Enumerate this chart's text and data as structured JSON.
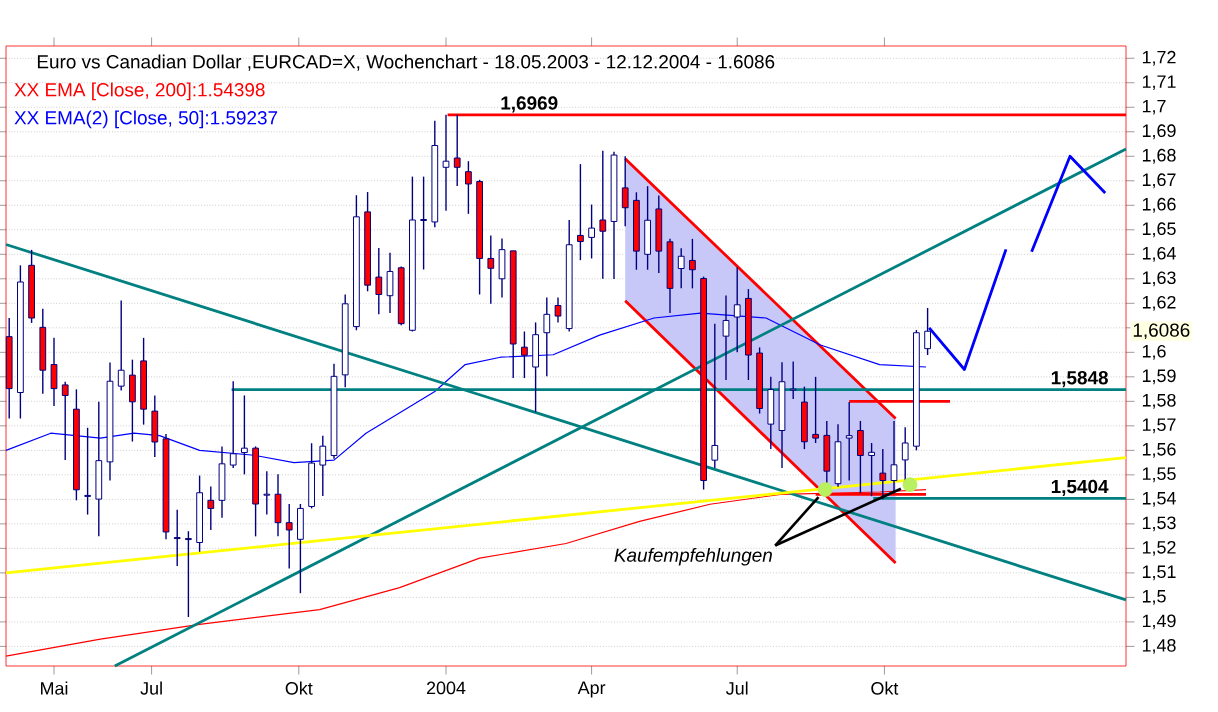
{
  "chart_data": {
    "type": "candlestick",
    "title": "Euro vs Canadian Dollar ,EURCAD=X, Wochenchart - 18.05.2003 - 12.12.2004 - 1.6086",
    "x": [
      "2003-04-03",
      "2003-04-10",
      "2003-04-17",
      "2003-04-24",
      "2003-05-01",
      "2003-05-08",
      "2003-05-15",
      "2003-05-22",
      "2003-05-29",
      "2003-06-05",
      "2003-06-12",
      "2003-06-19",
      "2003-06-26",
      "2003-07-03",
      "2003-07-10",
      "2003-07-17",
      "2003-07-24",
      "2003-07-31",
      "2003-08-07",
      "2003-08-14",
      "2003-08-21",
      "2003-08-28",
      "2003-09-04",
      "2003-09-11",
      "2003-09-18",
      "2003-09-25",
      "2003-10-02",
      "2003-10-09",
      "2003-10-16",
      "2003-10-23",
      "2003-10-30",
      "2003-11-06",
      "2003-11-13",
      "2003-11-20",
      "2003-11-27",
      "2003-12-04",
      "2003-12-11",
      "2003-12-18",
      "2003-12-25",
      "2004-01-01",
      "2004-01-08",
      "2004-01-15",
      "2004-01-22",
      "2004-01-29",
      "2004-02-05",
      "2004-02-12",
      "2004-02-19",
      "2004-02-26",
      "2004-03-04",
      "2004-03-11",
      "2004-03-18",
      "2004-03-25",
      "2004-04-01",
      "2004-04-08",
      "2004-04-15",
      "2004-04-22",
      "2004-04-29",
      "2004-05-06",
      "2004-05-13",
      "2004-05-20",
      "2004-05-27",
      "2004-06-03",
      "2004-06-10",
      "2004-06-17",
      "2004-06-24",
      "2004-07-01",
      "2004-07-08",
      "2004-07-15",
      "2004-07-22",
      "2004-07-29",
      "2004-08-05",
      "2004-08-12",
      "2004-08-19",
      "2004-08-26",
      "2004-09-02",
      "2004-09-09",
      "2004-09-16",
      "2004-09-23",
      "2004-09-30",
      "2004-10-07",
      "2004-10-14",
      "2004-10-21",
      "2004-10-28"
    ],
    "ohlc": [
      [
        1.6064,
        1.614,
        1.573,
        1.5852
      ],
      [
        1.5836,
        1.6355,
        1.573,
        1.6287
      ],
      [
        1.6355,
        1.6418,
        1.612,
        1.614
      ],
      [
        1.6102,
        1.6178,
        1.5831,
        1.5927
      ],
      [
        1.595,
        1.6059,
        1.5781,
        1.5852
      ],
      [
        1.5867,
        1.588,
        1.5561,
        1.5824
      ],
      [
        1.5768,
        1.5849,
        1.5396,
        1.5439
      ],
      [
        1.5412,
        1.5692,
        1.5338,
        1.5416
      ],
      [
        1.5401,
        1.5798,
        1.5249,
        1.5558
      ],
      [
        1.5553,
        1.5958,
        1.5477,
        1.5882
      ],
      [
        1.5862,
        1.6211,
        1.5844,
        1.5927
      ],
      [
        1.5907,
        1.597,
        1.5636,
        1.5798
      ],
      [
        1.5965,
        1.6059,
        1.5705,
        1.5768
      ],
      [
        1.576,
        1.5824,
        1.5573,
        1.5634
      ],
      [
        1.5647,
        1.5667,
        1.5237,
        1.5267
      ],
      [
        1.5244,
        1.5358,
        1.5128,
        1.524
      ],
      [
        1.524,
        1.527,
        1.492,
        1.5236
      ],
      [
        1.5224,
        1.5497,
        1.5186,
        1.5427
      ],
      [
        1.5396,
        1.5452,
        1.5275,
        1.5363
      ],
      [
        1.5396,
        1.5616,
        1.5325,
        1.5545
      ],
      [
        1.554,
        1.5882,
        1.5528,
        1.5586
      ],
      [
        1.5591,
        1.5824,
        1.5502,
        1.5609
      ],
      [
        1.5609,
        1.5616,
        1.5249,
        1.5381
      ],
      [
        1.5417,
        1.5515,
        1.5338,
        1.5421
      ],
      [
        1.5421,
        1.5502,
        1.5249,
        1.5305
      ],
      [
        1.5305,
        1.5381,
        1.5118,
        1.5275
      ],
      [
        1.5237,
        1.5381,
        1.5017,
        1.5363
      ],
      [
        1.5371,
        1.5629,
        1.5363,
        1.5548
      ],
      [
        1.554,
        1.566,
        1.5414,
        1.5617
      ],
      [
        1.5579,
        1.5953,
        1.5566,
        1.5902
      ],
      [
        1.5908,
        1.6236,
        1.5857,
        1.6198
      ],
      [
        1.6105,
        1.6641,
        1.609,
        1.6553
      ],
      [
        1.6573,
        1.6654,
        1.6249,
        1.6274
      ],
      [
        1.6307,
        1.6426,
        1.6155,
        1.6236
      ],
      [
        1.6231,
        1.6406,
        1.616,
        1.633
      ],
      [
        1.6345,
        1.635,
        1.611,
        1.6117
      ],
      [
        1.609,
        1.6717,
        1.6085,
        1.654
      ],
      [
        1.6538,
        1.6717,
        1.6338,
        1.6542
      ],
      [
        1.6532,
        1.6945,
        1.651,
        1.6844
      ],
      [
        1.6755,
        1.6969,
        1.6578,
        1.678
      ],
      [
        1.6793,
        1.6969,
        1.6679,
        1.6755
      ],
      [
        1.6737,
        1.678,
        1.6565,
        1.6687
      ],
      [
        1.6697,
        1.6704,
        1.6236,
        1.6383
      ],
      [
        1.6383,
        1.6477,
        1.6198,
        1.6343
      ],
      [
        1.63,
        1.6464,
        1.6224,
        1.6419
      ],
      [
        1.6414,
        1.6414,
        1.5895,
        1.6034
      ],
      [
        1.6021,
        1.6085,
        1.5895,
        1.5988
      ],
      [
        1.594,
        1.6122,
        1.5756,
        1.6072
      ],
      [
        1.608,
        1.6224,
        1.5902,
        1.6155
      ],
      [
        1.6191,
        1.6224,
        1.6122,
        1.6148
      ],
      [
        1.6097,
        1.654,
        1.6085,
        1.6439
      ],
      [
        1.6477,
        1.6768,
        1.6376,
        1.6452
      ],
      [
        1.6469,
        1.6603,
        1.6383,
        1.6507
      ],
      [
        1.654,
        1.6823,
        1.63,
        1.6494
      ],
      [
        1.6534,
        1.6818,
        1.6299,
        1.6805
      ],
      [
        1.6671,
        1.68,
        1.6514,
        1.659
      ],
      [
        1.662,
        1.6653,
        1.6337,
        1.6413
      ],
      [
        1.64,
        1.6678,
        1.6337,
        1.6539
      ],
      [
        1.6585,
        1.664,
        1.6324,
        1.6413
      ],
      [
        1.6451,
        1.6463,
        1.616,
        1.6261
      ],
      [
        1.6342,
        1.6425,
        1.6261,
        1.6392
      ],
      [
        1.6375,
        1.6463,
        1.6261,
        1.6337
      ],
      [
        1.6301,
        1.6309,
        1.544,
        1.5477
      ],
      [
        1.556,
        1.6117,
        1.5528,
        1.562
      ],
      [
        1.6066,
        1.6232,
        1.5887,
        1.613
      ],
      [
        1.6144,
        1.6347,
        1.6,
        1.6194
      ],
      [
        1.622,
        1.6258,
        1.5887,
        1.5989
      ],
      [
        1.5997,
        1.602,
        1.575,
        1.5771
      ],
      [
        1.5707,
        1.59,
        1.5605,
        1.5848
      ],
      [
        1.5681,
        1.596,
        1.5528,
        1.588
      ],
      [
        1.5846,
        1.5963,
        1.581,
        1.585
      ],
      [
        1.5797,
        1.586,
        1.5605,
        1.5635
      ],
      [
        1.5665,
        1.59,
        1.563,
        1.565
      ],
      [
        1.5661,
        1.572,
        1.5451,
        1.5515
      ],
      [
        1.5464,
        1.5707,
        1.5451,
        1.5635
      ],
      [
        1.565,
        1.5797,
        1.5477,
        1.566
      ],
      [
        1.5681,
        1.572,
        1.5425,
        1.5579
      ],
      [
        1.5579,
        1.563,
        1.5413,
        1.5592
      ],
      [
        1.5507,
        1.5605,
        1.54,
        1.5477
      ],
      [
        1.5477,
        1.572,
        1.5425,
        1.5541
      ],
      [
        1.5561,
        1.5694,
        1.5464,
        1.563
      ],
      [
        1.5617,
        1.6091,
        1.56,
        1.608
      ],
      [
        1.6015,
        1.6181,
        1.5989,
        1.6086
      ]
    ],
    "color": "#000080",
    "colors": [
      "#ff0000",
      "#ffffff",
      "#ff0000",
      "#ff0000",
      "#ff0000",
      "#ff0000",
      "#ff0000",
      "#ffffff",
      "#ffffff",
      "#ffffff",
      "#ffffff",
      "#ff0000",
      "#ff0000",
      "#ff0000",
      "#ff0000",
      "#ff0000",
      "#ff0000",
      "#ffffff",
      "#ff0000",
      "#ffffff",
      "#ffffff",
      "#ffffff",
      "#ff0000",
      "#ffffff",
      "#ff0000",
      "#ff0000",
      "#ffffff",
      "#ffffff",
      "#ffffff",
      "#ffffff",
      "#ffffff",
      "#ffffff",
      "#ff0000",
      "#ff0000",
      "#ffffff",
      "#ff0000",
      "#ffffff",
      "#ffffff",
      "#ffffff",
      "#ffffff",
      "#ff0000",
      "#ff0000",
      "#ff0000",
      "#ff0000",
      "#ffffff",
      "#ff0000",
      "#ff0000",
      "#ffffff",
      "#ffffff",
      "#ff0000",
      "#ffffff",
      "#ff0000",
      "#ffffff",
      "#ff0000",
      "#ffffff",
      "#ff0000",
      "#ff0000",
      "#ffffff",
      "#ff0000",
      "#ff0000",
      "#ffffff",
      "#ff0000",
      "#ff0000",
      "#ffffff",
      "#ffffff",
      "#ffffff",
      "#ff0000",
      "#ff0000",
      "#ffffff",
      "#ffffff",
      "#ffffff",
      "#ff0000",
      "#ff0000",
      "#ff0000",
      "#ffffff",
      "#ffffff",
      "#ff0000",
      "#ffffff",
      "#ff0000",
      "#ffffff",
      "#ffffff",
      "#ffffff",
      "#ffffff"
    ],
    "series": [
      {
        "type": "area",
        "color": "#c8c8f8",
        "x": [
          "2004-04-22",
          "2004-10-08"
        ],
        "values": [
          null,
          null
        ],
        "lower": [
          1.6209,
          1.5141
        ],
        "upper": [
          1.6792,
          1.5732
        ]
      },
      {
        "type": "line",
        "color": "#ff0000",
        "x": [
          "2004-04-22",
          "2004-10-08"
        ],
        "values": [
          1.679,
          1.573
        ]
      },
      {
        "type": "line",
        "color": "#ff0000",
        "x": [
          "2004-04-22",
          "2004-10-08"
        ],
        "values": [
          1.621,
          1.514
        ]
      },
      {
        "name": "XX EMA [Close, 200]:1.54398",
        "type": "line",
        "color": "#ff0000",
        "x": [
          "2003-04-01",
          "2003-05-30",
          "2003-07-31",
          "2003-10-14",
          "2003-12-03",
          "2004-01-22",
          "2004-03-16",
          "2004-05-01",
          "2004-06-14",
          "2004-07-28",
          "2004-09-28",
          "2004-10-27"
        ],
        "values": [
          1.476,
          1.483,
          1.489,
          1.495,
          1.504,
          1.516,
          1.522,
          1.531,
          1.538,
          1.542,
          1.543,
          1.544
        ]
      },
      {
        "name": "XX EMA(2) [Close, 50]:1.59237",
        "type": "line",
        "color": "#0000ff",
        "x": [
          "2003-04-01",
          "2003-04-29",
          "2003-05-30",
          "2003-06-20",
          "2003-07-06",
          "2003-07-31",
          "2003-09-03",
          "2003-09-28",
          "2003-10-23",
          "2003-11-12",
          "2003-12-25",
          "2004-01-13",
          "2004-02-04",
          "2004-03-08",
          "2004-04-06",
          "2004-05-10",
          "2004-06-08",
          "2004-07-19",
          "2004-08-22",
          "2004-09-28",
          "2004-10-27"
        ],
        "values": [
          1.56,
          1.567,
          1.565,
          1.567,
          1.566,
          1.56,
          1.558,
          1.555,
          1.556,
          1.567,
          1.584,
          1.595,
          1.598,
          1.599,
          1.607,
          1.614,
          1.616,
          1.614,
          1.603,
          1.595,
          1.594
        ]
      },
      {
        "type": "line",
        "color": "#008080",
        "x": [
          "2003-04-01",
          "2005-03-01"
        ],
        "values": [
          1.644,
          1.499
        ]
      },
      {
        "type": "line",
        "color": "#008080",
        "x": [
          "2003-06-08",
          "2005-03-01"
        ],
        "values": [
          1.472,
          1.683
        ]
      },
      {
        "type": "line",
        "color": "#ffff00",
        "x": [
          "2003-04-01",
          "2005-03-01"
        ],
        "values": [
          1.51,
          1.557
        ]
      },
      {
        "type": "line",
        "color": "#ff0000",
        "x": [
          "2004-01-02",
          "2005-03-01"
        ],
        "values": [
          1.6969,
          1.6969
        ]
      },
      {
        "type": "line",
        "color": "#008080",
        "x": [
          "2003-08-20",
          "2005-03-01"
        ],
        "values": [
          1.5848,
          1.5848
        ]
      },
      {
        "type": "line",
        "color": "#008080",
        "x": [
          "2004-09-24",
          "2005-03-01"
        ],
        "values": [
          1.5404,
          1.5404
        ]
      },
      {
        "type": "line",
        "color": "#ff0000",
        "x": [
          "2004-09-09",
          "2004-11-11"
        ],
        "values": [
          1.58,
          1.58
        ]
      },
      {
        "type": "line",
        "color": "#ff0000",
        "x": [
          "2004-08-19",
          "2004-10-27"
        ],
        "values": [
          1.542,
          1.542
        ]
      },
      {
        "type": "line",
        "color": "#0000ff",
        "x": [
          "2004-10-29",
          "2004-11-20",
          "2004-12-16",
          "2004-12-25",
          "2005-01-01",
          "2005-01-25",
          "2005-02-16"
        ],
        "values": [
          1.61,
          1.593,
          1.642,
          null,
          1.641,
          1.68,
          1.665
        ]
      },
      {
        "type": "scatter",
        "color": "#b8f060",
        "marker": "circle",
        "x": [
          "2004-08-25",
          "2004-10-17"
        ],
        "values": [
          1.544,
          1.546
        ]
      }
    ],
    "annotations": [
      {
        "text": "1,6969",
        "x": "2004-02-22",
        "y": 1.6969
      },
      {
        "text": "1,5848",
        "x": "2005-01-31",
        "y": 1.5848
      },
      {
        "text": "1,5404",
        "x": "2005-01-31",
        "y": 1.5404
      },
      {
        "text": "1,6086",
        "y": 1.6086
      },
      {
        "text": "Kaufempfehlungen",
        "x": "2004-08-25",
        "y": 1.544
      }
    ],
    "legend": "top left",
    "grid": "y",
    "xlim": [
      "2003-04-01",
      "2005-03-01"
    ],
    "xticks": [
      {
        "value": "2003-05-01",
        "label": "Mai"
      },
      {
        "value": "2003-07-01",
        "label": "Jul"
      },
      {
        "value": "2003-10-01",
        "label": "Okt"
      },
      {
        "value": "2004-01-01",
        "label": "2004"
      },
      {
        "value": "2004-04-01",
        "label": "Apr"
      },
      {
        "value": "2004-07-01",
        "label": "Jul"
      },
      {
        "value": "2004-10-01",
        "label": "Okt"
      }
    ],
    "ylim": [
      1.472,
      1.725
    ],
    "yticks": [
      {
        "value": 1.48,
        "label": "1,48"
      },
      {
        "value": 1.49,
        "label": "1,49"
      },
      {
        "value": 1.5,
        "label": "1,5"
      },
      {
        "value": 1.51,
        "label": "1,51"
      },
      {
        "value": 1.52,
        "label": "1,52"
      },
      {
        "value": 1.53,
        "label": "1,53"
      },
      {
        "value": 1.54,
        "label": "1,54"
      },
      {
        "value": 1.55,
        "label": "1,55"
      },
      {
        "value": 1.56,
        "label": "1,56"
      },
      {
        "value": 1.57,
        "label": "1,57"
      },
      {
        "value": 1.58,
        "label": "1,58"
      },
      {
        "value": 1.59,
        "label": "1,59"
      },
      {
        "value": 1.6,
        "label": "1,6"
      },
      {
        "value": 1.61,
        "label": null
      },
      {
        "value": 1.62,
        "label": "1,62"
      },
      {
        "value": 1.63,
        "label": "1,63"
      },
      {
        "value": 1.64,
        "label": "1,64"
      },
      {
        "value": 1.65,
        "label": "1,65"
      },
      {
        "value": 1.66,
        "label": "1,66"
      },
      {
        "value": 1.67,
        "label": "1,67"
      },
      {
        "value": 1.68,
        "label": "1,68"
      },
      {
        "value": 1.69,
        "label": "1,69"
      },
      {
        "value": 1.7,
        "label": "1,7"
      },
      {
        "value": 1.71,
        "label": "1,71"
      },
      {
        "value": 1.72,
        "label": "1,72"
      }
    ]
  }
}
